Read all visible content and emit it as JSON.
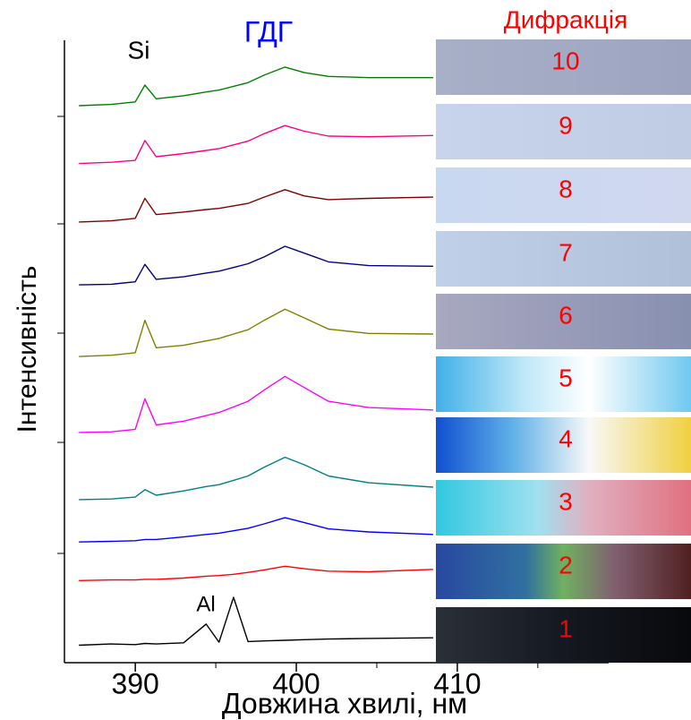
{
  "chart_data": {
    "type": "line",
    "ylabel": "Інтенсивність",
    "xlabel": "Довжина хвилі, нм",
    "annotations": [
      "Si",
      "ГДГ",
      "Al"
    ],
    "xlim": [
      385.6,
      419.4
    ],
    "xticks": [
      390,
      400,
      410
    ],
    "xminorticks": [
      395,
      405,
      415
    ],
    "ylim": [
      0,
      100
    ],
    "x": [
      386.5,
      388.5,
      390,
      390.6,
      391.3,
      393,
      394.4,
      395.2,
      396.1,
      397,
      398,
      399.3,
      400.5,
      402,
      404.5,
      408.5
    ],
    "series": [
      {
        "color": "#000000",
        "values": [
          2.8,
          3.0,
          2.9,
          3.1,
          3.0,
          3.2,
          6.2,
          3.3,
          10.5,
          3.4,
          3.5,
          3.6,
          3.7,
          3.8,
          3.9,
          4.0
        ]
      },
      {
        "color": "#ff0000",
        "values": [
          13.2,
          13.3,
          13.3,
          13.4,
          13.4,
          13.6,
          13.9,
          14.0,
          14.2,
          14.5,
          14.9,
          15.5,
          15.1,
          14.7,
          14.6,
          15.0
        ]
      },
      {
        "color": "#0000ff",
        "values": [
          19.4,
          19.5,
          19.6,
          19.8,
          19.8,
          20.2,
          20.6,
          20.8,
          21.2,
          21.6,
          22.3,
          23.3,
          22.5,
          21.5,
          21.0,
          20.6
        ]
      },
      {
        "color": "#008080",
        "values": [
          26.2,
          26.3,
          26.6,
          27.8,
          26.9,
          27.6,
          28.3,
          28.6,
          29.3,
          30.0,
          31.4,
          33.0,
          31.8,
          30.0,
          28.9,
          28.2
        ]
      },
      {
        "color": "#ff00ff",
        "values": [
          37.0,
          37.1,
          37.5,
          42.4,
          38.2,
          38.8,
          39.7,
          40.2,
          41.1,
          42.0,
          43.8,
          46.0,
          44.2,
          42.0,
          41.0,
          40.6
        ]
      },
      {
        "color": "#808000",
        "values": [
          49.2,
          49.4,
          49.8,
          55.0,
          50.6,
          51.0,
          51.7,
          52.1,
          52.8,
          53.5,
          55.0,
          56.8,
          55.4,
          53.6,
          52.9,
          52.8
        ]
      },
      {
        "color": "#000080",
        "values": [
          60.7,
          60.8,
          61.2,
          64.0,
          61.6,
          62.0,
          62.6,
          62.9,
          63.5,
          64.1,
          65.2,
          66.9,
          65.8,
          64.4,
          63.8,
          63.7
        ]
      },
      {
        "color": "#800000",
        "values": [
          70.8,
          71.0,
          71.4,
          74.6,
          72.0,
          72.4,
          72.8,
          73.0,
          73.4,
          73.8,
          74.8,
          76.0,
          75.0,
          74.4,
          74.6,
          74.8
        ]
      },
      {
        "color": "#ff0080",
        "values": [
          80.2,
          80.4,
          80.7,
          83.9,
          81.3,
          81.8,
          82.3,
          82.6,
          83.2,
          83.8,
          85.0,
          86.3,
          85.4,
          84.6,
          84.5,
          84.7
        ]
      },
      {
        "color": "#008000",
        "values": [
          89.5,
          89.7,
          90.1,
          92.8,
          90.6,
          91.1,
          91.7,
          92.0,
          92.6,
          93.2,
          94.4,
          95.7,
          94.8,
          94.2,
          94.0,
          94.0
        ]
      }
    ],
    "diffraction": {
      "title": "Дифракція",
      "labels": [
        "1",
        "2",
        "3",
        "4",
        "5",
        "6",
        "7",
        "8",
        "9",
        "10"
      ]
    }
  }
}
